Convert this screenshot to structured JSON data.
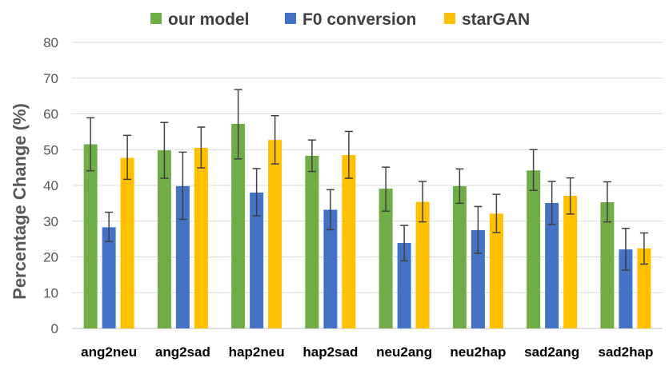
{
  "chart_data": {
    "type": "bar",
    "title": "",
    "xlabel": "",
    "ylabel": "Percentage Change (%)",
    "ylim": [
      0,
      80
    ],
    "yticks": [
      0,
      10,
      20,
      30,
      40,
      50,
      60,
      70,
      80
    ],
    "grid": true,
    "legend_position": "top",
    "categories": [
      "ang2neu",
      "ang2sad",
      "hap2neu",
      "hap2sad",
      "neu2ang",
      "neu2hap",
      "sad2ang",
      "sad2hap"
    ],
    "series": [
      {
        "name": "our model",
        "color": "#70AD47",
        "values": [
          51.5,
          49.8,
          57.2,
          48.3,
          39.1,
          39.8,
          44.2,
          35.3
        ],
        "error_low": [
          44.1,
          42.0,
          47.4,
          43.9,
          32.8,
          35.0,
          38.6,
          29.8
        ],
        "error_high": [
          58.9,
          57.6,
          66.8,
          52.7,
          45.1,
          44.6,
          50.0,
          41.0
        ]
      },
      {
        "name": "F0 conversion",
        "color": "#4472C4",
        "values": [
          28.3,
          39.8,
          38.0,
          33.2,
          23.9,
          27.5,
          35.1,
          22.1
        ],
        "error_low": [
          24.3,
          30.5,
          31.5,
          27.6,
          18.9,
          21.0,
          29.1,
          16.3
        ],
        "error_high": [
          32.5,
          49.3,
          44.7,
          38.8,
          28.8,
          34.1,
          41.1,
          28.0
        ]
      },
      {
        "name": "starGAN",
        "color": "#FFC000",
        "values": [
          47.7,
          50.5,
          52.7,
          48.5,
          35.4,
          32.1,
          37.1,
          22.4
        ],
        "error_low": [
          41.7,
          44.9,
          46.0,
          42.0,
          29.8,
          26.8,
          32.0,
          18.0
        ],
        "error_high": [
          54.0,
          56.3,
          59.5,
          55.1,
          41.1,
          37.5,
          42.1,
          26.7
        ]
      }
    ]
  }
}
